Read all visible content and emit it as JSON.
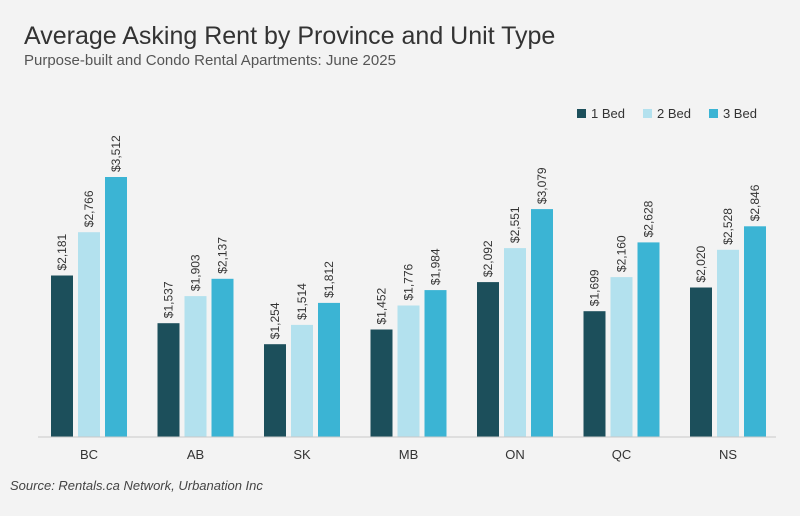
{
  "title": "Average Asking Rent by Province and Unit Type",
  "subtitle": "Purpose-built and Condo Rental Apartments: June 2025",
  "source": "Source: Rentals.ca Network, Urbanation Inc",
  "legend": {
    "items": [
      {
        "label": "1 Bed",
        "color": "#1c4f5b"
      },
      {
        "label": "2 Bed",
        "color": "#b3e1ee"
      },
      {
        "label": "3 Bed",
        "color": "#3bb4d4"
      }
    ]
  },
  "chart_data": {
    "type": "bar",
    "categories": [
      "BC",
      "AB",
      "SK",
      "MB",
      "ON",
      "QC",
      "NS"
    ],
    "series": [
      {
        "name": "1 Bed",
        "values": [
          2181,
          1537,
          1254,
          1452,
          2092,
          1699,
          2020
        ],
        "labels": [
          "$2,181",
          "$1,537",
          "$1,254",
          "$1,452",
          "$2,092",
          "$1,699",
          "$2,020"
        ],
        "color": "#1c4f5b"
      },
      {
        "name": "2 Bed",
        "values": [
          2766,
          1903,
          1514,
          1776,
          2551,
          2160,
          2528
        ],
        "labels": [
          "$2,766",
          "$1,903",
          "$1,514",
          "$1,776",
          "$2,551",
          "$2,160",
          "$2,528"
        ],
        "color": "#b3e1ee"
      },
      {
        "name": "3 Bed",
        "values": [
          3512,
          2137,
          1812,
          1984,
          3079,
          2628,
          2846
        ],
        "labels": [
          "$3,512",
          "$2,137",
          "$1,812",
          "$1,984",
          "$3,079",
          "$2,628",
          "$2,846"
        ],
        "color": "#3bb4d4"
      }
    ],
    "ylim": [
      0,
      3512
    ],
    "grid": false,
    "legend_position": "top-right"
  }
}
